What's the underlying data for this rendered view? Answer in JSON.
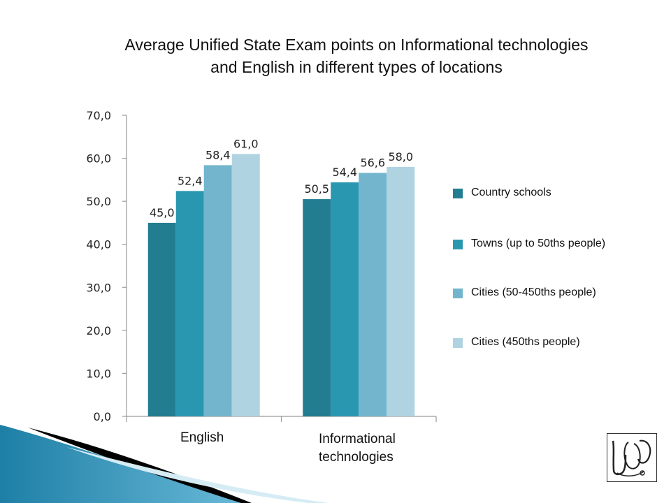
{
  "title_lines": [
    "Average Unified State Exam points on Informational technologies",
    "and English in different types of locations"
  ],
  "chart_data": {
    "type": "bar",
    "title": "Average Unified State Exam points on Informational technologies and English in different types of locations",
    "categories": [
      "English",
      "Informational technologies"
    ],
    "category_label_lines": [
      [
        "English"
      ],
      [
        "Informational",
        "technologies"
      ]
    ],
    "series": [
      {
        "name": "Country schools",
        "values": [
          45.0,
          50.5
        ],
        "labels": [
          "45,0",
          "50,5"
        ],
        "color": "#237d91"
      },
      {
        "name": "Towns (up to 50ths people)",
        "values": [
          52.4,
          54.4
        ],
        "labels": [
          "52,4",
          "54,4"
        ],
        "color": "#2a97b1"
      },
      {
        "name": "Cities (50-450ths people)",
        "values": [
          58.4,
          56.6
        ],
        "labels": [
          "58,4",
          "56,6"
        ],
        "color": "#72b5cd"
      },
      {
        "name": "Cities (450ths people)",
        "values": [
          61.0,
          58.0
        ],
        "labels": [
          "61,0",
          "58,0"
        ],
        "color": "#b0d3e1"
      }
    ],
    "ylim": [
      0,
      70
    ],
    "yticks": [
      0,
      10,
      20,
      30,
      40,
      50,
      60,
      70
    ],
    "ytick_labels": [
      "0,0",
      "10,0",
      "20,0",
      "30,0",
      "40,0",
      "50,0",
      "60,0",
      "70,0"
    ],
    "xlabel": "",
    "ylabel": "",
    "grid": false,
    "legend_position": "right"
  },
  "decoration": {
    "swoosh_colors": [
      "#1e7fa6",
      "#6bbbd9",
      "#000000"
    ]
  }
}
